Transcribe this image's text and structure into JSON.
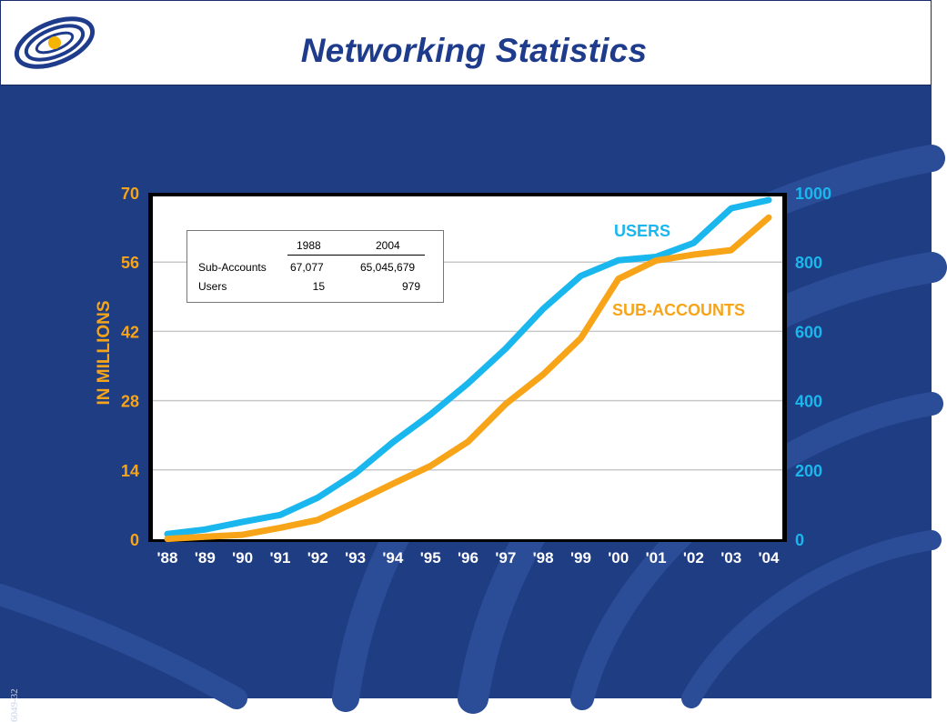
{
  "header": {
    "title": "Networking Statistics"
  },
  "slide_number": "6049-32",
  "colors": {
    "background": "#1f3d83",
    "title": "#1f3c8c",
    "users": "#19b7ee",
    "sub_accounts": "#f7a418"
  },
  "table": {
    "headers": [
      "1988",
      "2004"
    ],
    "rows": [
      {
        "label": "Sub-Accounts",
        "values": [
          "67,077",
          "65,045,679"
        ]
      },
      {
        "label": "Users",
        "values": [
          "15",
          "979"
        ]
      }
    ]
  },
  "chart_data": {
    "type": "line",
    "title": "",
    "xlabel": "",
    "ylabel": "IN MILLIONS",
    "ylabel_right": "",
    "categories": [
      "'88",
      "'89",
      "'90",
      "'91",
      "'92",
      "'93",
      "'94",
      "'95",
      "'96",
      "'97",
      "'98",
      "'99",
      "'00",
      "'01",
      "'02",
      "'03",
      "'04"
    ],
    "ylim_left": [
      0,
      70
    ],
    "yticks_left": [
      0,
      14,
      28,
      42,
      56,
      70
    ],
    "ylim_right": [
      0,
      1000
    ],
    "yticks_right": [
      0,
      200,
      400,
      600,
      800,
      1000
    ],
    "grid": true,
    "series": [
      {
        "name": "USERS",
        "axis": "right",
        "color": "#19b7ee",
        "values": [
          15,
          28,
          50,
          70,
          120,
          190,
          280,
          360,
          450,
          550,
          665,
          760,
          805,
          815,
          855,
          955,
          979
        ]
      },
      {
        "name": "SUB-ACCOUNTS",
        "axis": "left",
        "color": "#f7a418",
        "values": [
          0.07,
          0.5,
          0.9,
          2.3,
          3.9,
          7.5,
          11.2,
          14.8,
          19.7,
          27.3,
          33.3,
          40.6,
          52.6,
          56.3,
          57.5,
          58.4,
          65.0
        ]
      }
    ]
  }
}
